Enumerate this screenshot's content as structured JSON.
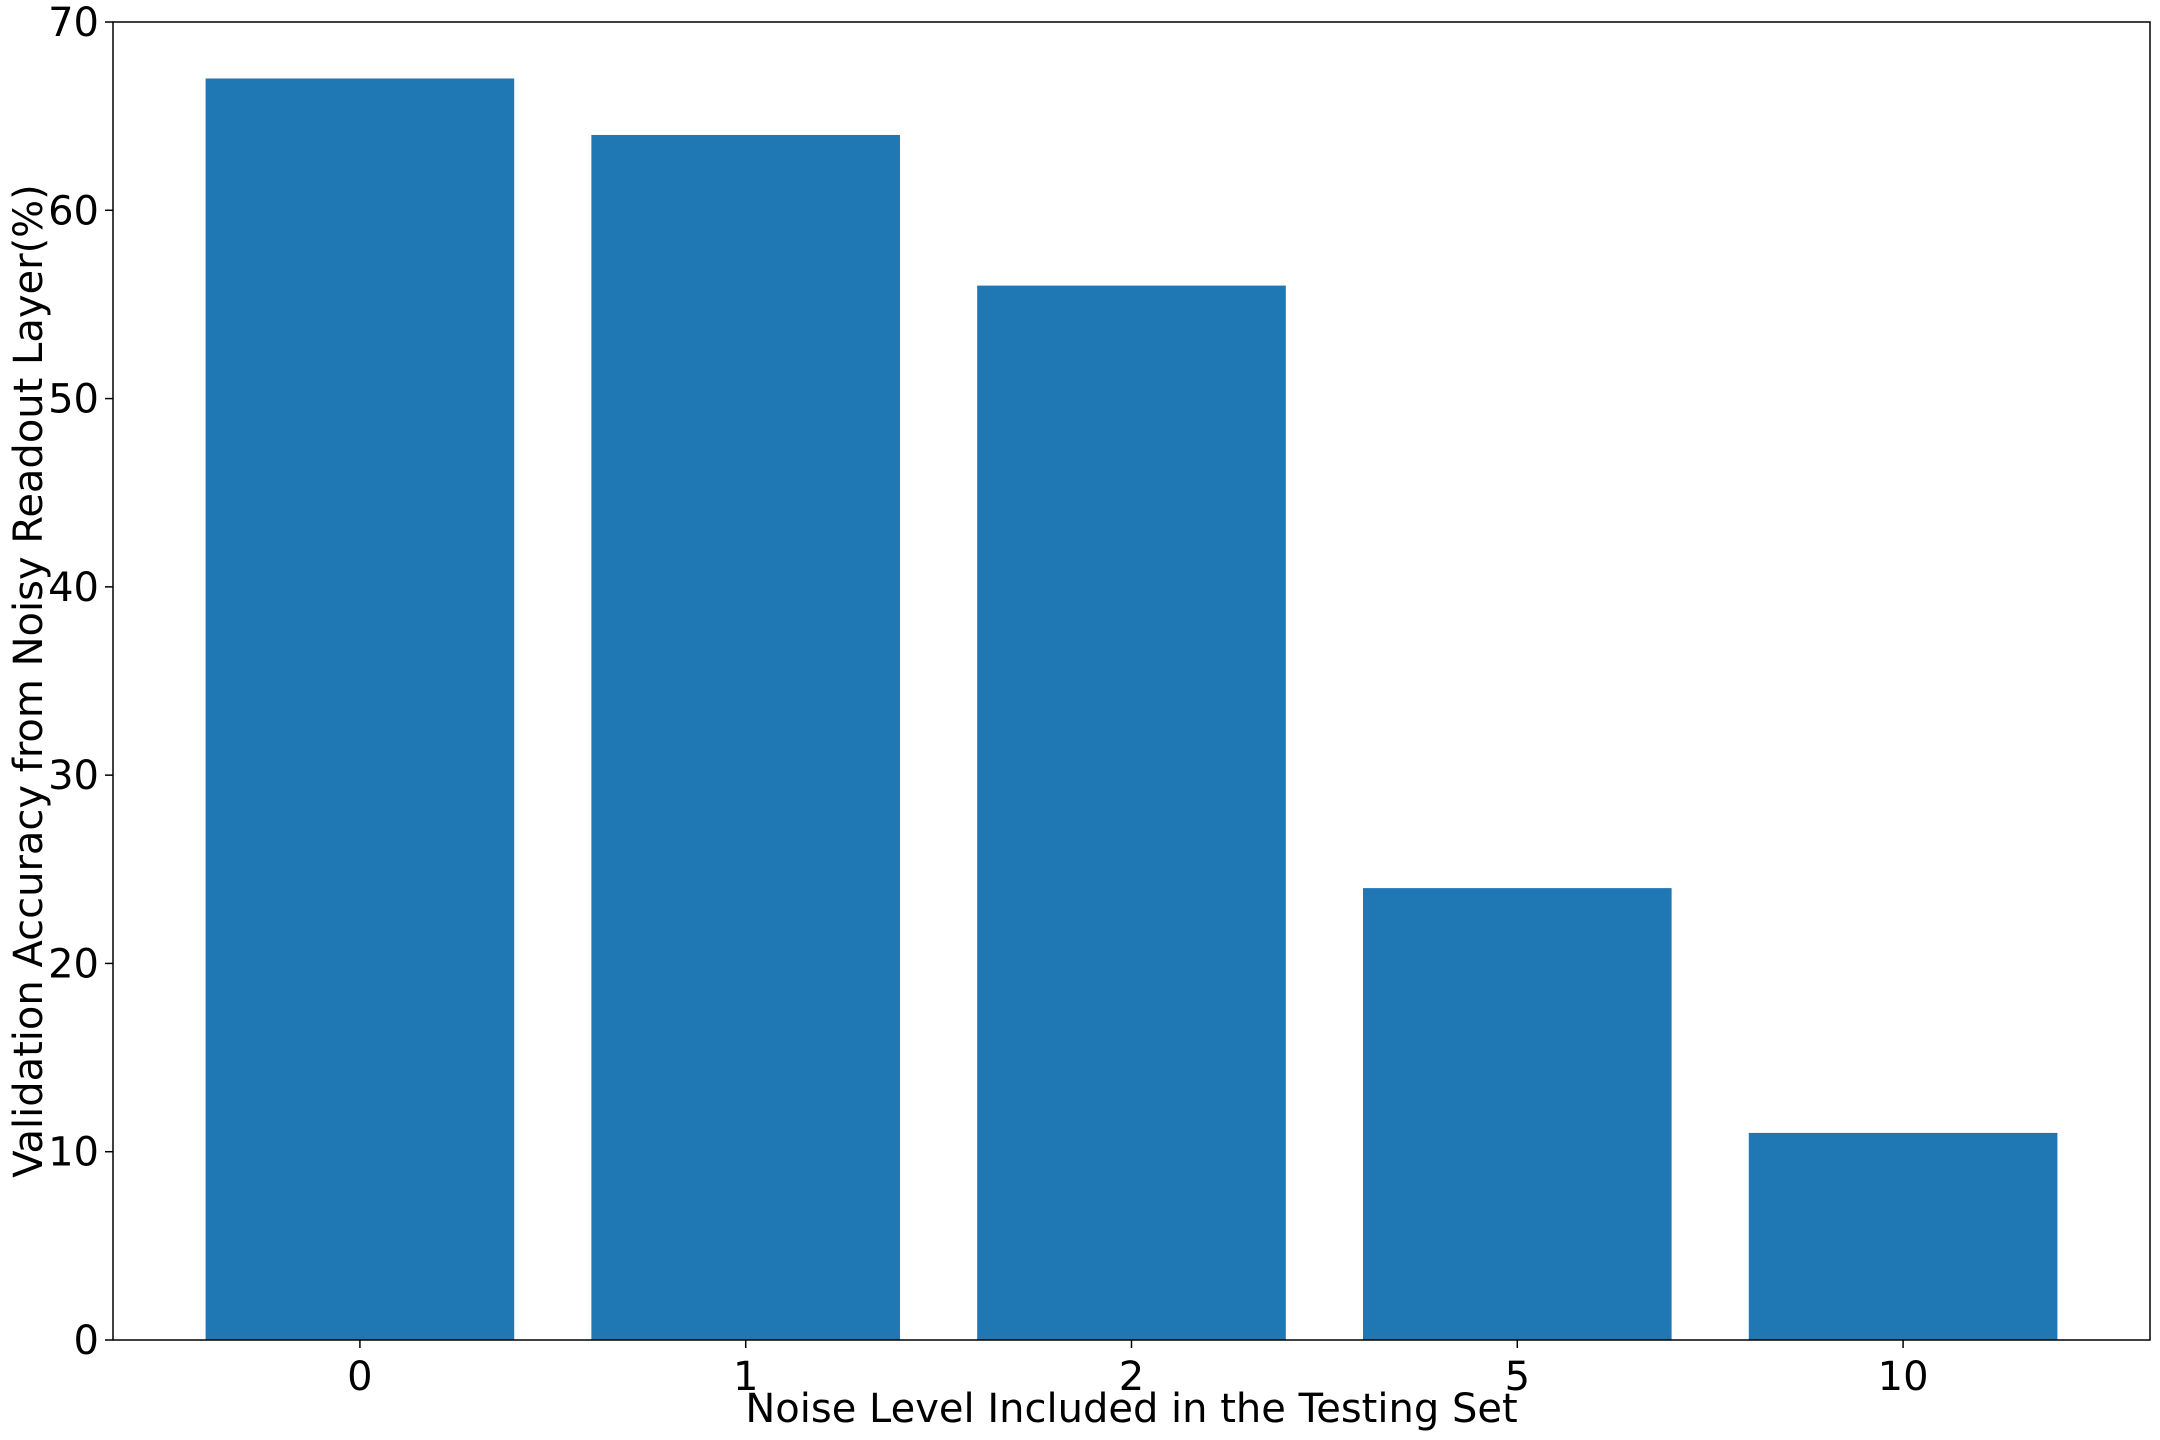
{
  "chart_data": {
    "type": "bar",
    "categories": [
      "0",
      "1",
      "2",
      "5",
      "10"
    ],
    "values": [
      67,
      64,
      56,
      24,
      11
    ],
    "title": "",
    "xlabel": "Noise Level Included in the Testing Set",
    "ylabel": "Validation Accuracy from Noisy Readout Layer(%)",
    "ylim": [
      0,
      70
    ],
    "yticks": [
      "0",
      "10",
      "20",
      "30",
      "40",
      "50",
      "60",
      "70"
    ],
    "grid": false,
    "bar_color": "#1f77b4"
  }
}
